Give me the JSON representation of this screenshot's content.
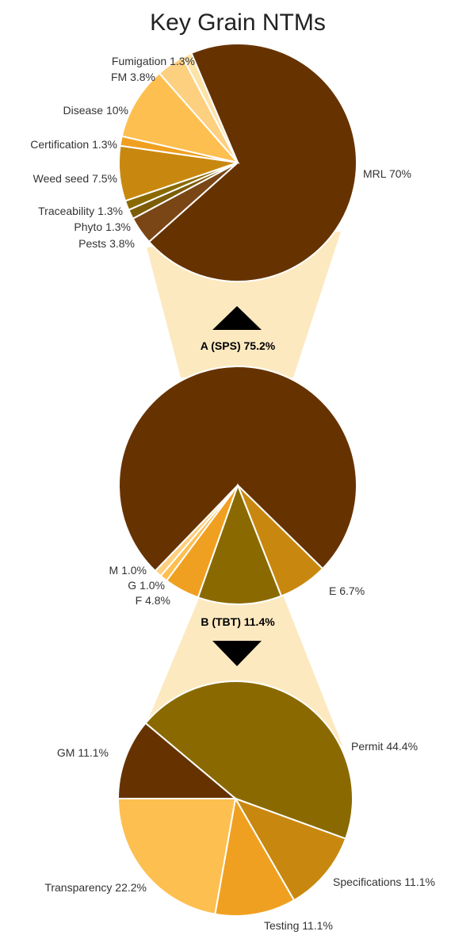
{
  "title": "Key Grain NTMs",
  "chart_data": [
    {
      "type": "pie",
      "categories": [
        "MRL",
        "Pests",
        "Phyto",
        "Traceability",
        "Weed seed",
        "Certification",
        "Disease",
        "FM",
        "Fumigation"
      ],
      "values": [
        70,
        3.8,
        1.3,
        1.3,
        7.5,
        1.3,
        10,
        3.8,
        1.3
      ],
      "value_labels": [
        "70%",
        "3.8%",
        "1.3%",
        "1.3%",
        "7.5%",
        "1.3%",
        "10%",
        "3.8%",
        "1.3%"
      ],
      "colors": [
        "#663300",
        "#7a4616",
        "#7d5c08",
        "#8a6a00",
        "#c8880f",
        "#f0a020",
        "#fdbf50",
        "#fdd080",
        "#fde3a8"
      ]
    },
    {
      "type": "pie",
      "categories": [
        "A (SPS)",
        "E",
        "B (TBT)",
        "F",
        "G",
        "M"
      ],
      "values": [
        75.2,
        6.7,
        11.4,
        4.8,
        1.0,
        1.0
      ],
      "value_labels": [
        "75.2%",
        "6.7%",
        "11.4%",
        "4.8%",
        "1.0%",
        "1.0%"
      ],
      "colors": [
        "#663300",
        "#c8880f",
        "#8a6a00",
        "#f0a020",
        "#fdbf50",
        "#fdd080"
      ]
    },
    {
      "type": "pie",
      "categories": [
        "Permit",
        "Specifications",
        "Testing",
        "Transparency",
        "GM"
      ],
      "values": [
        44.4,
        11.1,
        11.1,
        22.2,
        11.1
      ],
      "value_labels": [
        "44.4%",
        "11.1%",
        "11.1%",
        "22.2%",
        "11.1%"
      ],
      "colors": [
        "#8a6a00",
        "#c8880f",
        "#f0a020",
        "#fdbf50",
        "#663300"
      ]
    }
  ]
}
